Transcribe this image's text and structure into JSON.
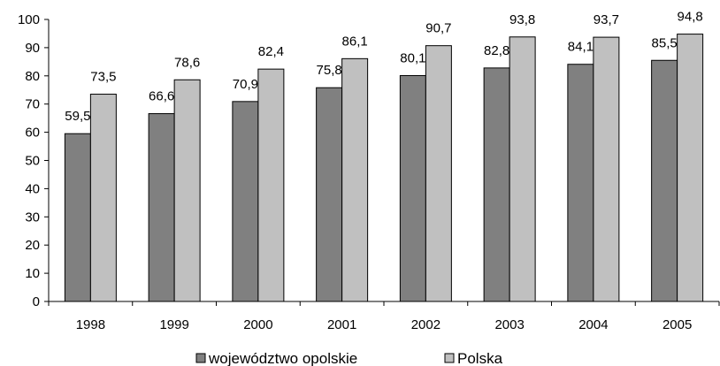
{
  "chart_data": {
    "type": "bar",
    "categories": [
      "1998",
      "1999",
      "2000",
      "2001",
      "2002",
      "2003",
      "2004",
      "2005"
    ],
    "series": [
      {
        "name": "województwo opolskie",
        "values": [
          59.5,
          66.6,
          70.9,
          75.8,
          80.1,
          82.8,
          84.1,
          85.5
        ],
        "labels": [
          "59,5",
          "66,6",
          "70,9",
          "75,8",
          "80,1",
          "82,8",
          "84,1",
          "85,5"
        ],
        "color": "#808080"
      },
      {
        "name": "Polska",
        "values": [
          73.5,
          78.6,
          82.4,
          86.1,
          90.7,
          93.8,
          93.7,
          94.8
        ],
        "labels": [
          "73,5",
          "78,6",
          "82,4",
          "86,1",
          "90,7",
          "93,8",
          "93,7",
          "94,8"
        ],
        "color": "#c0c0c0"
      }
    ],
    "y_ticks": [
      0,
      10,
      20,
      30,
      40,
      50,
      60,
      70,
      80,
      90,
      100
    ],
    "ylim": [
      0,
      100
    ],
    "grid": false,
    "legend_position": "bottom"
  }
}
